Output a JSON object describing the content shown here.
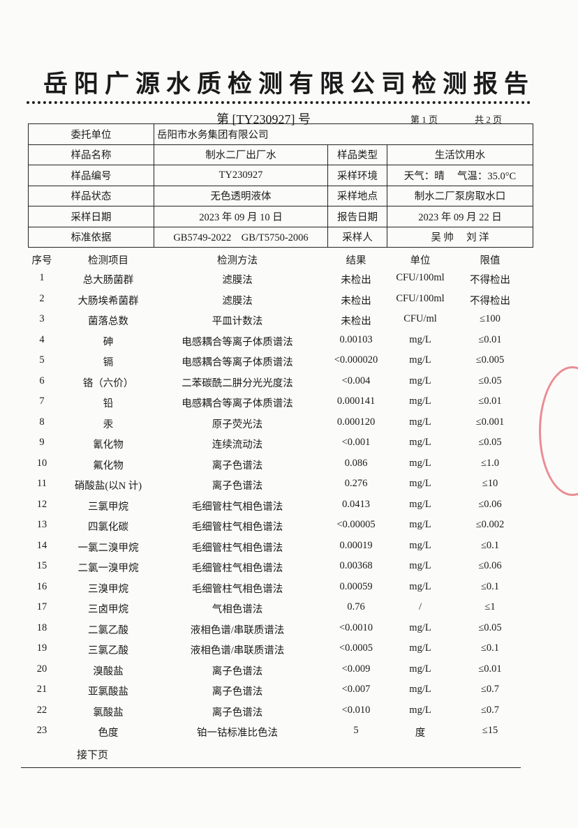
{
  "header": {
    "title": "岳阳广源水质检测有限公司检测报告",
    "report_no": "第 [TY230927] 号",
    "page": "第 1 页",
    "total_pages": "共 2 页"
  },
  "info": {
    "rows": [
      [
        "委托单位",
        "岳阳市水务集团有限公司"
      ],
      [
        "样品名称",
        "制水二厂出厂水",
        "样品类型",
        "生活饮用水"
      ],
      [
        "样品编号",
        "TY230927",
        "采样环境",
        "天气：晴　 气温：35.0°C"
      ],
      [
        "样品状态",
        "无色透明液体",
        "采样地点",
        "制水二厂泵房取水口"
      ],
      [
        "采样日期",
        "2023 年 09 月 10 日",
        "报告日期",
        "2023 年 09 月 22 日"
      ],
      [
        "标准依据",
        "GB5749-2022　GB/T5750-2006",
        "采样人",
        "吴 帅　 刘 洋"
      ]
    ]
  },
  "table": {
    "header": [
      "序号",
      "检测项目",
      "检测方法",
      "结果",
      "单位",
      "限值"
    ],
    "rows": [
      [
        "1",
        "总大肠菌群",
        "滤膜法",
        "未检出",
        "CFU/100ml",
        "不得检出"
      ],
      [
        "2",
        "大肠埃希菌群",
        "滤膜法",
        "未检出",
        "CFU/100ml",
        "不得检出"
      ],
      [
        "3",
        "菌落总数",
        "平皿计数法",
        "未检出",
        "CFU/ml",
        "≤100"
      ],
      [
        "4",
        "砷",
        "电感耦合等离子体质谱法",
        "0.00103",
        "mg/L",
        "≤0.01"
      ],
      [
        "5",
        "镉",
        "电感耦合等离子体质谱法",
        "<0.000020",
        "mg/L",
        "≤0.005"
      ],
      [
        "6",
        "铬（六价）",
        "二苯碳酰二肼分光光度法",
        "<0.004",
        "mg/L",
        "≤0.05"
      ],
      [
        "7",
        "铅",
        "电感耦合等离子体质谱法",
        "0.000141",
        "mg/L",
        "≤0.01"
      ],
      [
        "8",
        "汞",
        "原子荧光法",
        "0.000120",
        "mg/L",
        "≤0.001"
      ],
      [
        "9",
        "氰化物",
        "连续流动法",
        "<0.001",
        "mg/L",
        "≤0.05"
      ],
      [
        "10",
        "氟化物",
        "离子色谱法",
        "0.086",
        "mg/L",
        "≤1.0"
      ],
      [
        "11",
        "硝酸盐(以N 计)",
        "离子色谱法",
        "0.276",
        "mg/L",
        "≤10"
      ],
      [
        "12",
        "三氯甲烷",
        "毛细管柱气相色谱法",
        "0.0413",
        "mg/L",
        "≤0.06"
      ],
      [
        "13",
        "四氯化碳",
        "毛细管柱气相色谱法",
        "<0.00005",
        "mg/L",
        "≤0.002"
      ],
      [
        "14",
        "一氯二溴甲烷",
        "毛细管柱气相色谱法",
        "0.00019",
        "mg/L",
        "≤0.1"
      ],
      [
        "15",
        "二氯一溴甲烷",
        "毛细管柱气相色谱法",
        "0.00368",
        "mg/L",
        "≤0.06"
      ],
      [
        "16",
        "三溴甲烷",
        "毛细管柱气相色谱法",
        "0.00059",
        "mg/L",
        "≤0.1"
      ],
      [
        "17",
        "三卤甲烷",
        "气相色谱法",
        "0.76",
        "/",
        "≤1"
      ],
      [
        "18",
        "二氯乙酸",
        "液相色谱/串联质谱法",
        "<0.0010",
        "mg/L",
        "≤0.05"
      ],
      [
        "19",
        "三氯乙酸",
        "液相色谱/串联质谱法",
        "<0.0005",
        "mg/L",
        "≤0.1"
      ],
      [
        "20",
        "溴酸盐",
        "离子色谱法",
        "<0.009",
        "mg/L",
        "≤0.01"
      ],
      [
        "21",
        "亚氯酸盐",
        "离子色谱法",
        "<0.007",
        "mg/L",
        "≤0.7"
      ],
      [
        "22",
        "氯酸盐",
        "离子色谱法",
        "<0.010",
        "mg/L",
        "≤0.7"
      ],
      [
        "23",
        "色度",
        "铂一钴标准比色法",
        "5",
        "度",
        "≤15"
      ]
    ]
  },
  "footer": {
    "continued": "接下页"
  }
}
